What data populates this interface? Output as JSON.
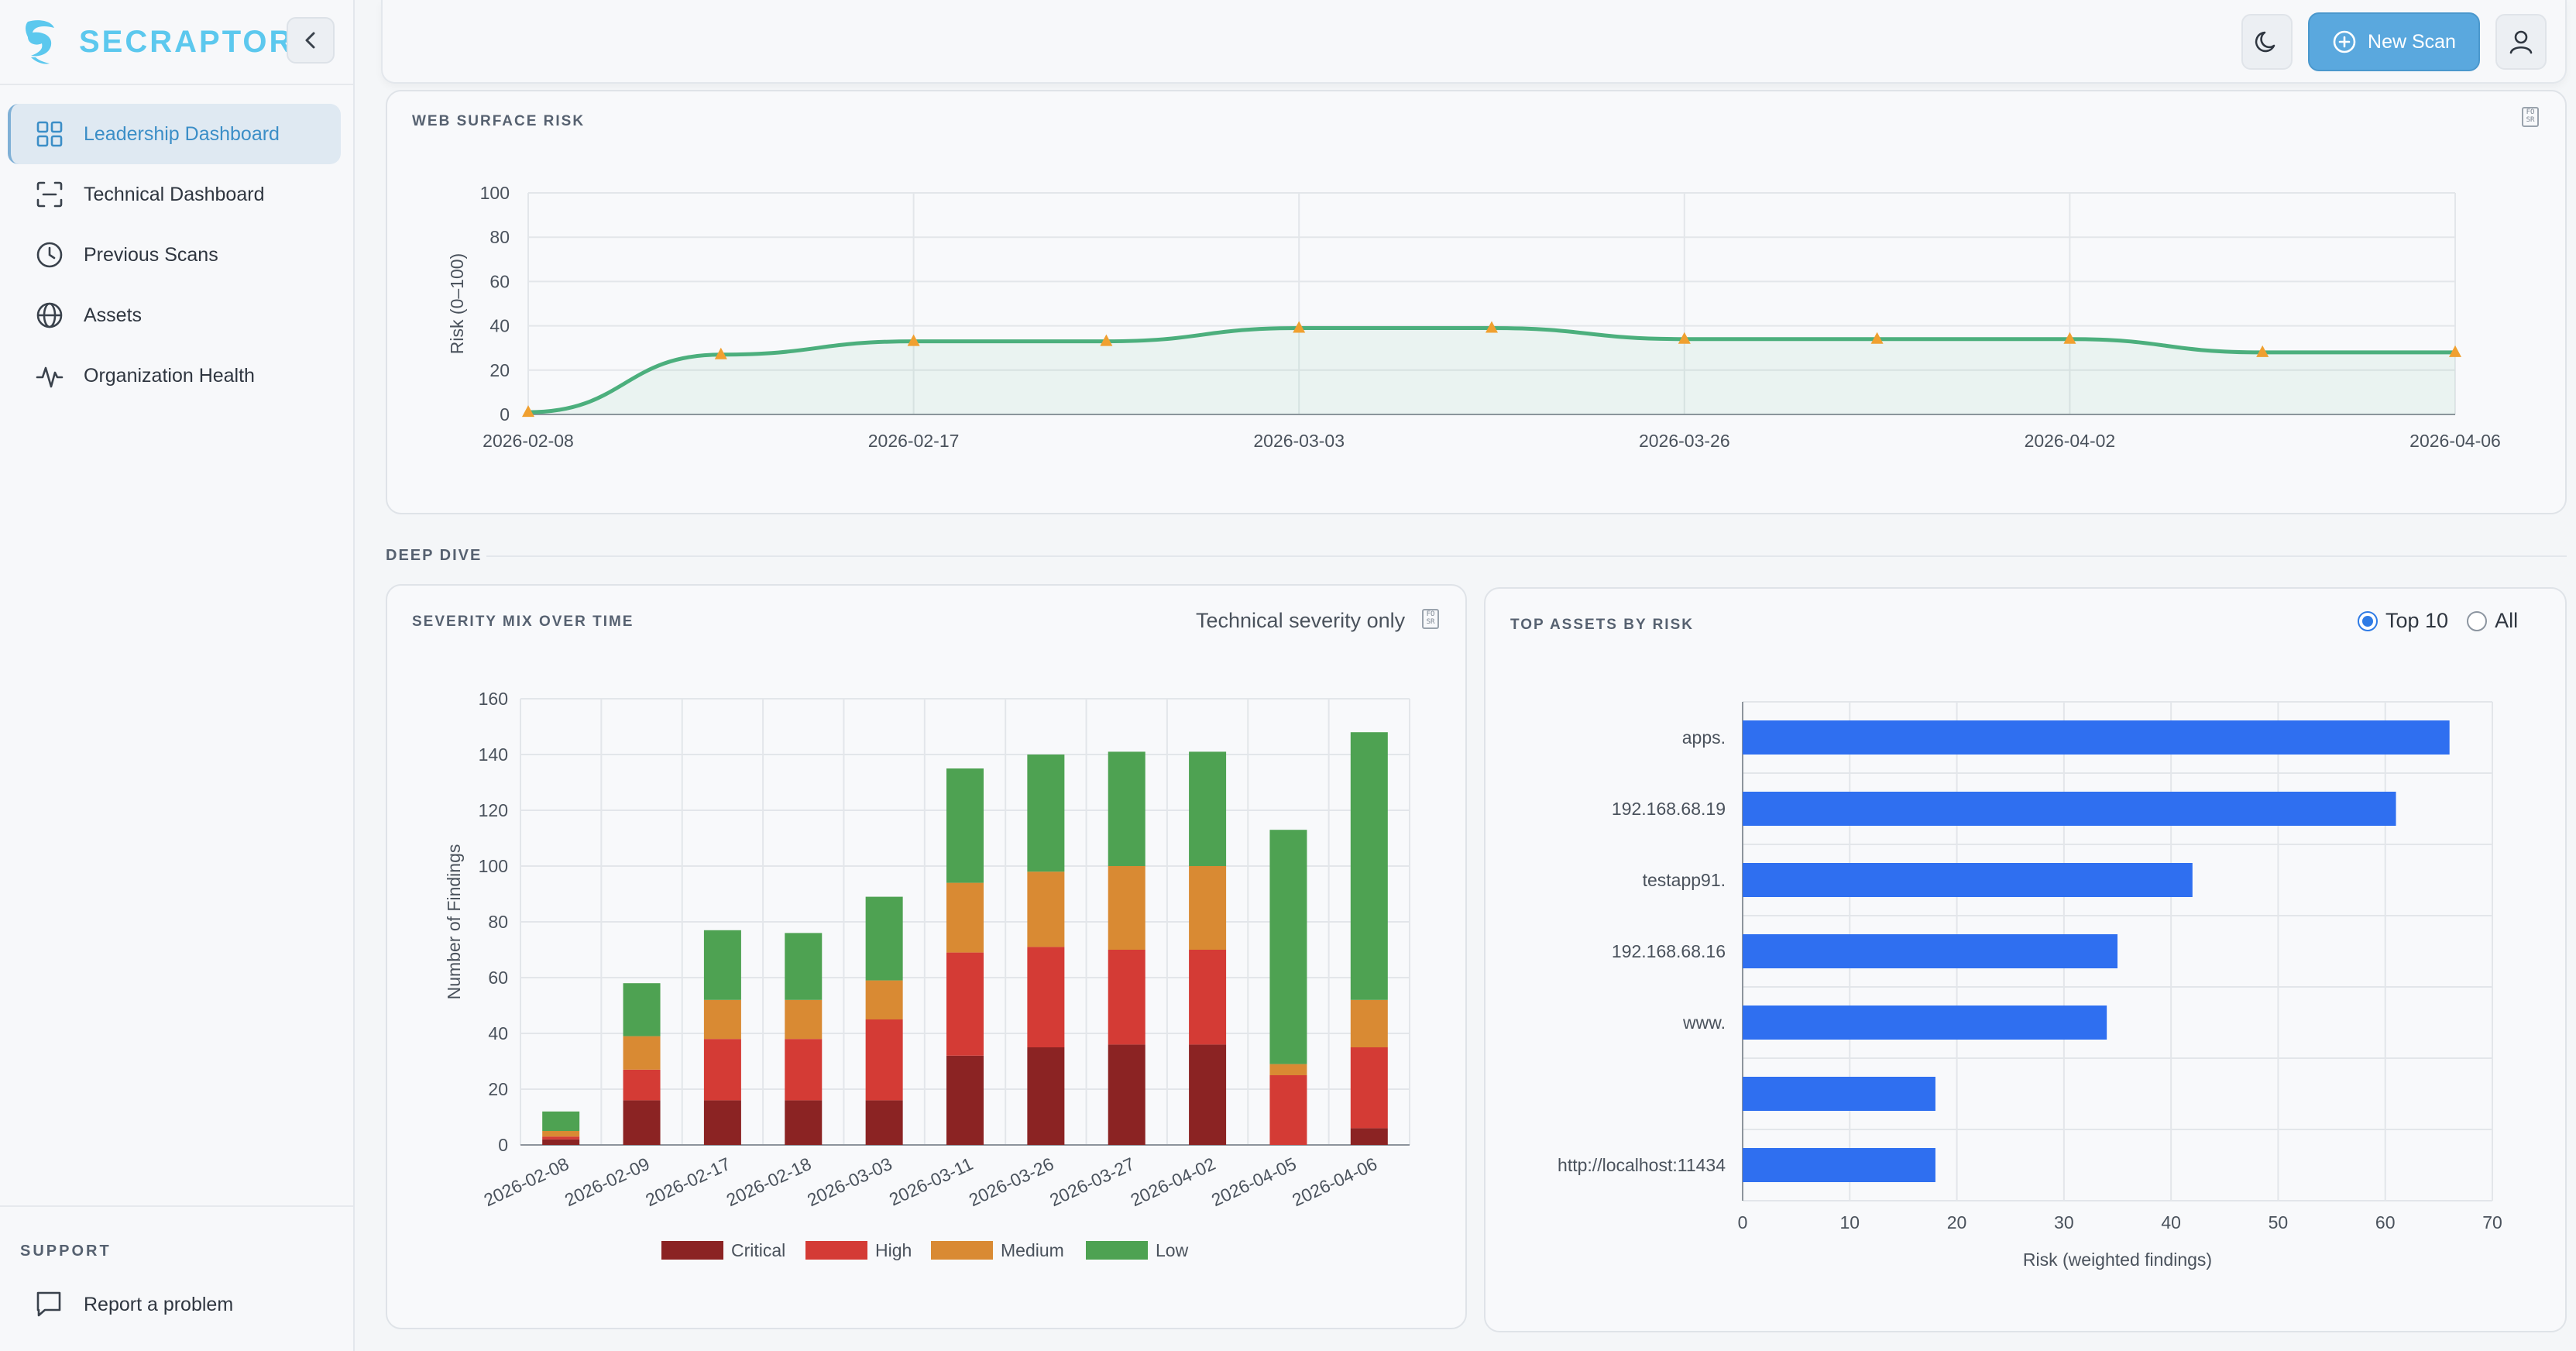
{
  "brand": {
    "name": "SECRAPTOR"
  },
  "sidebar": {
    "items": [
      {
        "label": "Leadership Dashboard",
        "icon": "grid-icon",
        "active": true
      },
      {
        "label": "Technical Dashboard",
        "icon": "scan-frame-icon",
        "active": false
      },
      {
        "label": "Previous Scans",
        "icon": "clock-icon",
        "active": false
      },
      {
        "label": "Assets",
        "icon": "globe-icon",
        "active": false
      },
      {
        "label": "Organization Health",
        "icon": "activity-icon",
        "active": false
      }
    ],
    "support_label": "SUPPORT",
    "report_label": "Report a problem"
  },
  "header": {
    "new_scan_label": "New Scan"
  },
  "colors": {
    "accent": "#5aa8de",
    "line": "#4caf7d",
    "marker": "#f0a030",
    "critical": "#8b2323",
    "high": "#d43b35",
    "medium": "#d98a33",
    "low": "#4ea252",
    "bar": "#2f6ff0"
  },
  "web_surface": {
    "title": "WEB SURFACE RISK"
  },
  "deep_dive_label": "DEEP DIVE",
  "severity": {
    "title": "SEVERITY MIX OVER TIME",
    "note": "Technical severity only"
  },
  "top_assets": {
    "title": "TOP ASSETS BY RISK",
    "options": [
      "Top 10",
      "All"
    ],
    "selected": "Top 10"
  },
  "chart_data": [
    {
      "type": "line",
      "ylabel": "Risk (0–100)",
      "ylim": [
        0,
        100
      ],
      "y_ticks": [
        0,
        20,
        40,
        60,
        80,
        100
      ],
      "x_tick_labels": [
        "2026-02-08",
        "2026-02-17",
        "2026-03-03",
        "2026-03-26",
        "2026-04-02",
        "2026-04-06"
      ],
      "x": [
        0,
        1,
        2,
        3,
        4,
        5,
        6,
        7,
        8,
        9,
        10
      ],
      "values": [
        1,
        27,
        33,
        33,
        39,
        39,
        34,
        34,
        34,
        28,
        28
      ],
      "grid": true,
      "area_fill": true
    },
    {
      "type": "bar",
      "stacked": true,
      "ylabel": "Number of Findings",
      "ylim": [
        0,
        160
      ],
      "y_ticks": [
        0,
        20,
        40,
        60,
        80,
        100,
        120,
        140,
        160
      ],
      "categories": [
        "2026-02-08",
        "2026-02-09",
        "2026-02-17",
        "2026-02-18",
        "2026-03-03",
        "2026-03-11",
        "2026-03-26",
        "2026-03-27",
        "2026-04-02",
        "2026-04-05",
        "2026-04-06"
      ],
      "series": [
        {
          "name": "Critical",
          "values": [
            2,
            16,
            16,
            16,
            16,
            32,
            35,
            36,
            36,
            0,
            6
          ]
        },
        {
          "name": "High",
          "values": [
            1,
            11,
            22,
            22,
            29,
            37,
            36,
            34,
            34,
            25,
            29
          ]
        },
        {
          "name": "Medium",
          "values": [
            2,
            12,
            14,
            14,
            14,
            25,
            27,
            30,
            30,
            4,
            17
          ]
        },
        {
          "name": "Low",
          "values": [
            7,
            19,
            25,
            24,
            30,
            41,
            42,
            41,
            41,
            84,
            96
          ]
        }
      ],
      "legend": "bottom",
      "grid": true
    },
    {
      "type": "bar",
      "orientation": "horizontal",
      "xlabel": "Risk (weighted findings)",
      "xlim": [
        0,
        70
      ],
      "x_ticks": [
        0,
        10,
        20,
        30,
        40,
        50,
        60,
        70
      ],
      "categories": [
        "apps.",
        "192.168.68.19",
        "testapp91.",
        "192.168.68.16",
        "www.",
        "",
        "http://localhost:11434"
      ],
      "values": [
        66,
        61,
        42,
        35,
        34,
        18,
        18
      ],
      "grid": true
    }
  ]
}
